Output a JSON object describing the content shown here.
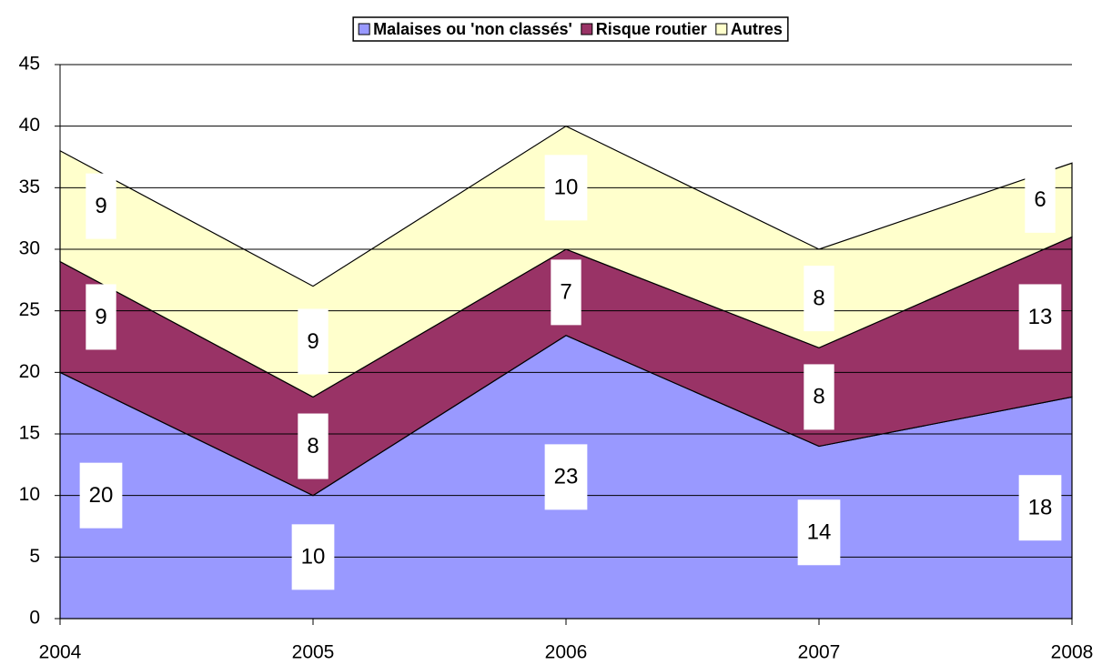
{
  "chart_data": {
    "type": "stacked_area",
    "categories": [
      "2004",
      "2005",
      "2006",
      "2007",
      "2008"
    ],
    "series": [
      {
        "name": "Malaises ou 'non classés'",
        "color": "#9999ff",
        "values": [
          20,
          10,
          23,
          14,
          18
        ]
      },
      {
        "name": "Risque routier",
        "color": "#993366",
        "values": [
          9,
          8,
          7,
          8,
          13
        ]
      },
      {
        "name": "Autres",
        "color": "#ffffcc",
        "values": [
          9,
          9,
          10,
          8,
          6
        ]
      }
    ],
    "ylim": [
      0,
      45
    ],
    "yticks": [
      0,
      5,
      10,
      15,
      20,
      25,
      30,
      35,
      40,
      45
    ],
    "grid": true,
    "legend": "top"
  }
}
